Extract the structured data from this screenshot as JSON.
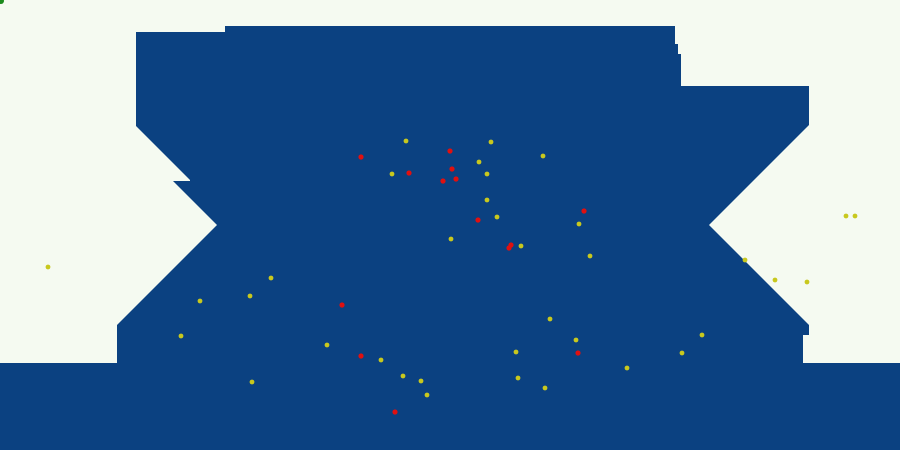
{
  "colors": {
    "background": "#F5FAF1",
    "terrain": "#0B4181",
    "pellet": "#C8C81E",
    "enemy": "#E01010",
    "player": "#1C8A1C"
  },
  "pellet_count": 36,
  "enemy_count": 14
}
